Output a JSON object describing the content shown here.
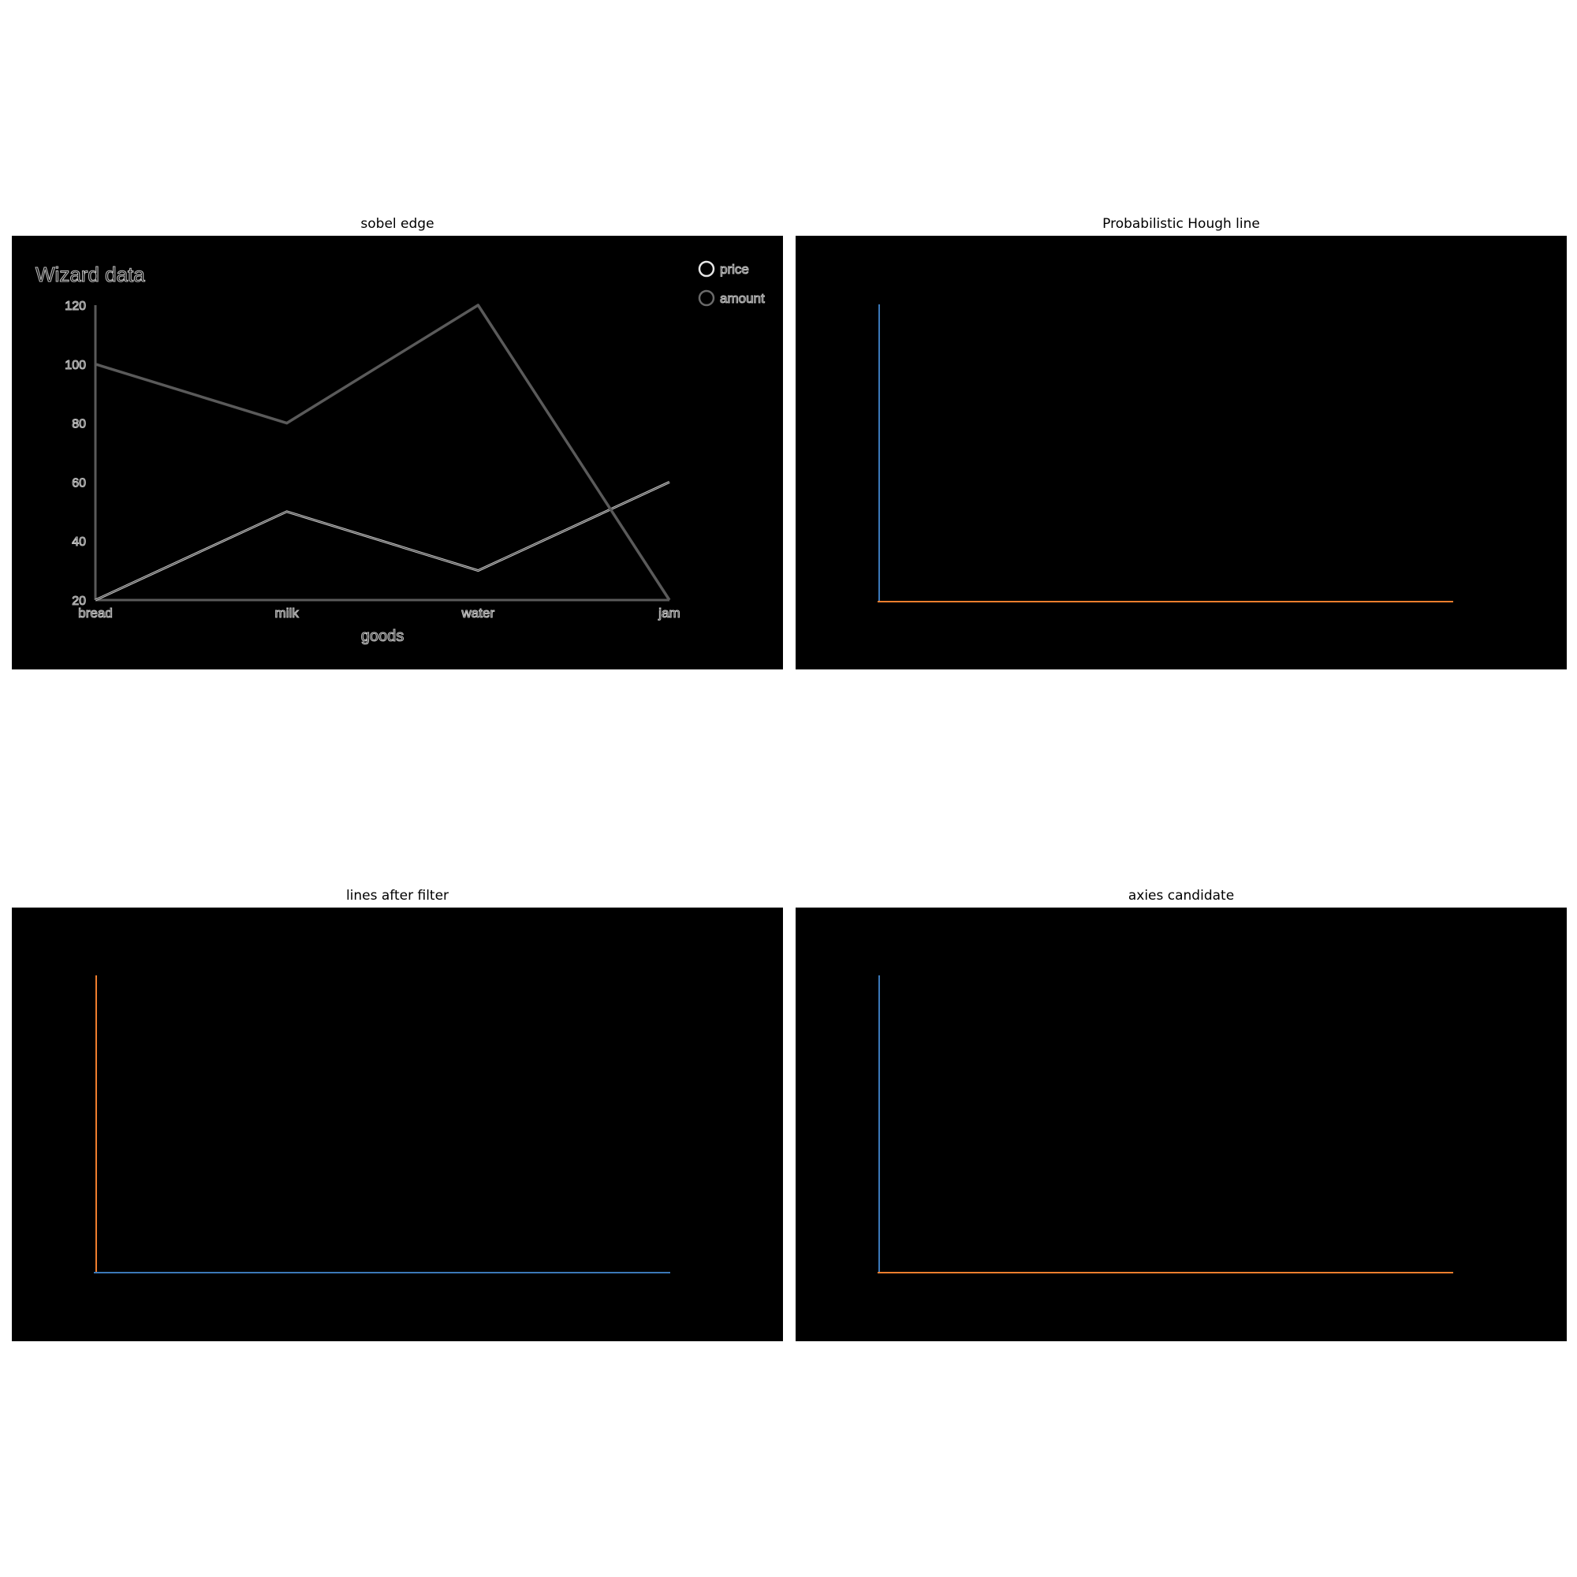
{
  "panels": [
    {
      "id": "sobel",
      "title": "sobel edge"
    },
    {
      "id": "hough",
      "title": "Probabilistic Hough line"
    },
    {
      "id": "filter",
      "title": "lines after filter"
    },
    {
      "id": "axes",
      "title": "axies candidate"
    }
  ],
  "colors": {
    "blue": "#3b78b8",
    "orange": "#ef7e2d",
    "edge_light": "#c8c8c8",
    "edge_dark": "#5a5a5a"
  },
  "chart_data": {
    "type": "line",
    "title": "Wizard data",
    "xlabel": "goods",
    "ylabel": "",
    "categories": [
      "bread",
      "milk",
      "water",
      "jam"
    ],
    "series": [
      {
        "name": "price",
        "values": [
          20,
          50,
          30,
          60
        ]
      },
      {
        "name": "amount",
        "values": [
          100,
          80,
          120,
          20
        ]
      }
    ],
    "ylim": [
      20,
      120
    ],
    "yticks": [
      20,
      40,
      60,
      80,
      100,
      120
    ],
    "legend_position": "top-right",
    "grid": false
  }
}
